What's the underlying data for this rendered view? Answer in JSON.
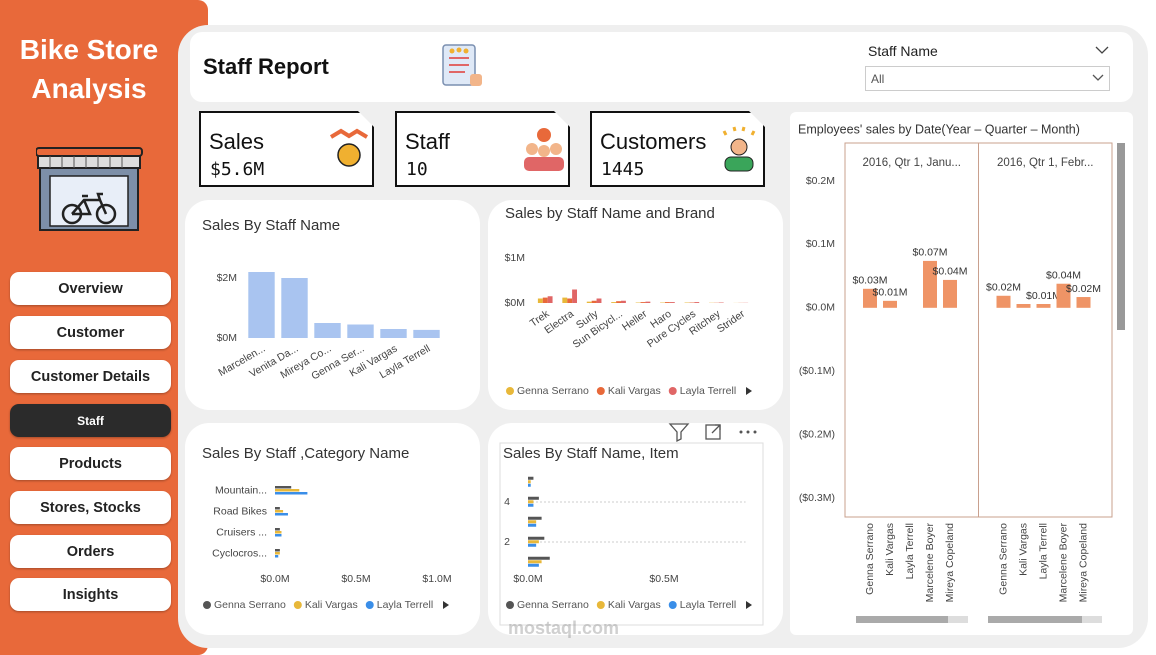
{
  "sidebar": {
    "title": "Bike Store Analysis",
    "nav": [
      "Overview",
      "Customer",
      "Customer Details",
      "Staff",
      "Products",
      "Stores, Stocks",
      "Orders",
      "Insights"
    ]
  },
  "header": {
    "title": "Staff Report",
    "filter_label": "Staff Name",
    "filter_value": "All"
  },
  "cards": [
    {
      "label": "Sales",
      "value": "$5.6M"
    },
    {
      "label": "Staff",
      "value": 10
    },
    {
      "label": "Customers",
      "value": 1445
    }
  ],
  "watermark": "mostaql.com",
  "chart_data": [
    {
      "type": "bar",
      "title": "Sales By Staff Name",
      "categories": [
        "Marcelen...",
        "Venita Da...",
        "Mireya Co...",
        "Genna Ser...",
        "Kali Vargas",
        "Layla Terrell"
      ],
      "values": [
        2.2,
        2.0,
        0.5,
        0.45,
        0.3,
        0.27
      ],
      "color": "#a9c4f0",
      "ylim": [
        0,
        2.5
      ],
      "yticks": [
        {
          "value": 0,
          "label": "$0M"
        },
        {
          "value": 2,
          "label": "$2M"
        }
      ],
      "grid": false
    },
    {
      "type": "bar",
      "title": "Sales by Staff Name and Brand",
      "categories": [
        "Trek",
        "Electra",
        "Surly",
        "Sun Bicycl...",
        "Heller",
        "Haro",
        "Pure Cycles",
        "Ritchey",
        "Strider"
      ],
      "series": [
        {
          "name": "Genna Serrano",
          "color": "#e8b83a",
          "values": [
            0.1,
            0.12,
            0.03,
            0.02,
            0.01,
            0.01,
            0.01,
            0.005,
            0.002
          ]
        },
        {
          "name": "Kali Vargas",
          "color": "#e8693a",
          "values": [
            0.12,
            0.1,
            0.05,
            0.04,
            0.02,
            0.02,
            0.01,
            0.005,
            0.003
          ]
        },
        {
          "name": "Layla Terrell",
          "color": "#e06666",
          "values": [
            0.15,
            0.3,
            0.1,
            0.05,
            0.03,
            0.02,
            0.02,
            0.01,
            0.004
          ]
        }
      ],
      "ylim": [
        0,
        1.3
      ],
      "yticks": [
        {
          "value": 0,
          "label": "$0M"
        },
        {
          "value": 1,
          "label": "$1M"
        }
      ],
      "grid": false
    },
    {
      "type": "bar",
      "horizontal": true,
      "title": "Sales By Staff ,Category Name",
      "categories": [
        "Mountain...",
        "Road Bikes",
        "Cruisers ...",
        "Cyclocros..."
      ],
      "series": [
        {
          "name": "Genna Serrano",
          "color": "#555555",
          "values": [
            0.1,
            0.03,
            0.03,
            0.03
          ]
        },
        {
          "name": "Kali Vargas",
          "color": "#e8b83a",
          "values": [
            0.15,
            0.05,
            0.04,
            0.03
          ]
        },
        {
          "name": "Layla Terrell",
          "color": "#3a8ee8",
          "values": [
            0.2,
            0.08,
            0.04,
            0.02
          ]
        }
      ],
      "xlim": [
        0,
        1.0
      ],
      "xticks": [
        {
          "value": 0,
          "label": "$0.0M"
        },
        {
          "value": 0.5,
          "label": "$0.5M"
        },
        {
          "value": 1,
          "label": "$1.0M"
        }
      ],
      "grid": false
    },
    {
      "type": "bar",
      "horizontal": true,
      "title": "Sales By Staff Name, Item",
      "y": [
        1,
        2,
        3,
        4,
        5
      ],
      "series": [
        {
          "name": "Genna Serrano",
          "color": "#555555",
          "values": [
            0.08,
            0.06,
            0.05,
            0.04,
            0.02
          ]
        },
        {
          "name": "Kali Vargas",
          "color": "#e8b83a",
          "values": [
            0.05,
            0.04,
            0.03,
            0.02,
            0.01
          ]
        },
        {
          "name": "Layla Terrell",
          "color": "#3a8ee8",
          "values": [
            0.04,
            0.03,
            0.03,
            0.02,
            0.01
          ]
        }
      ],
      "xlim": [
        0,
        0.8
      ],
      "xticks": [
        {
          "value": 0,
          "label": "$0.0M"
        },
        {
          "value": 0.5,
          "label": "$0.5M"
        }
      ],
      "ylim": [
        0.5,
        5.5
      ],
      "yticks": [
        2,
        4
      ],
      "grid": true
    },
    {
      "type": "bar",
      "title": "Employees' sales by Date(Year – Quarter – Month)",
      "categories": [
        "Genna Serrano",
        "Kali Vargas",
        "Layla Terrell",
        "Marcelene Boyer",
        "Mireya Copeland"
      ],
      "color": "#ef9466",
      "panels": [
        {
          "title": "2016, Qtr 1, Janu...",
          "values": [
            0.03,
            0.011,
            null,
            0.074,
            0.044
          ],
          "value_labels": [
            "$0.03M",
            "$0.01M",
            null,
            "$0.07M",
            "$0.04M"
          ]
        },
        {
          "title": "2016, Qtr 1, Febr...",
          "values": [
            0.019,
            0.006,
            0.006,
            0.038,
            0.017
          ],
          "value_labels": [
            "$0.02M",
            null,
            "$0.01M",
            "$0.04M",
            "$0.02M"
          ]
        }
      ],
      "ylim": [
        -0.33,
        0.26
      ],
      "yticks": [
        {
          "value": 0.2,
          "label": "$0.2M"
        },
        {
          "value": 0.1,
          "label": "$0.1M"
        },
        {
          "value": 0,
          "label": "$0.0M"
        },
        {
          "value": -0.1,
          "label": "($0.1M)"
        },
        {
          "value": -0.2,
          "label": "($0.2M)"
        },
        {
          "value": -0.3,
          "label": "($0.3M)"
        }
      ],
      "grid": false
    }
  ]
}
